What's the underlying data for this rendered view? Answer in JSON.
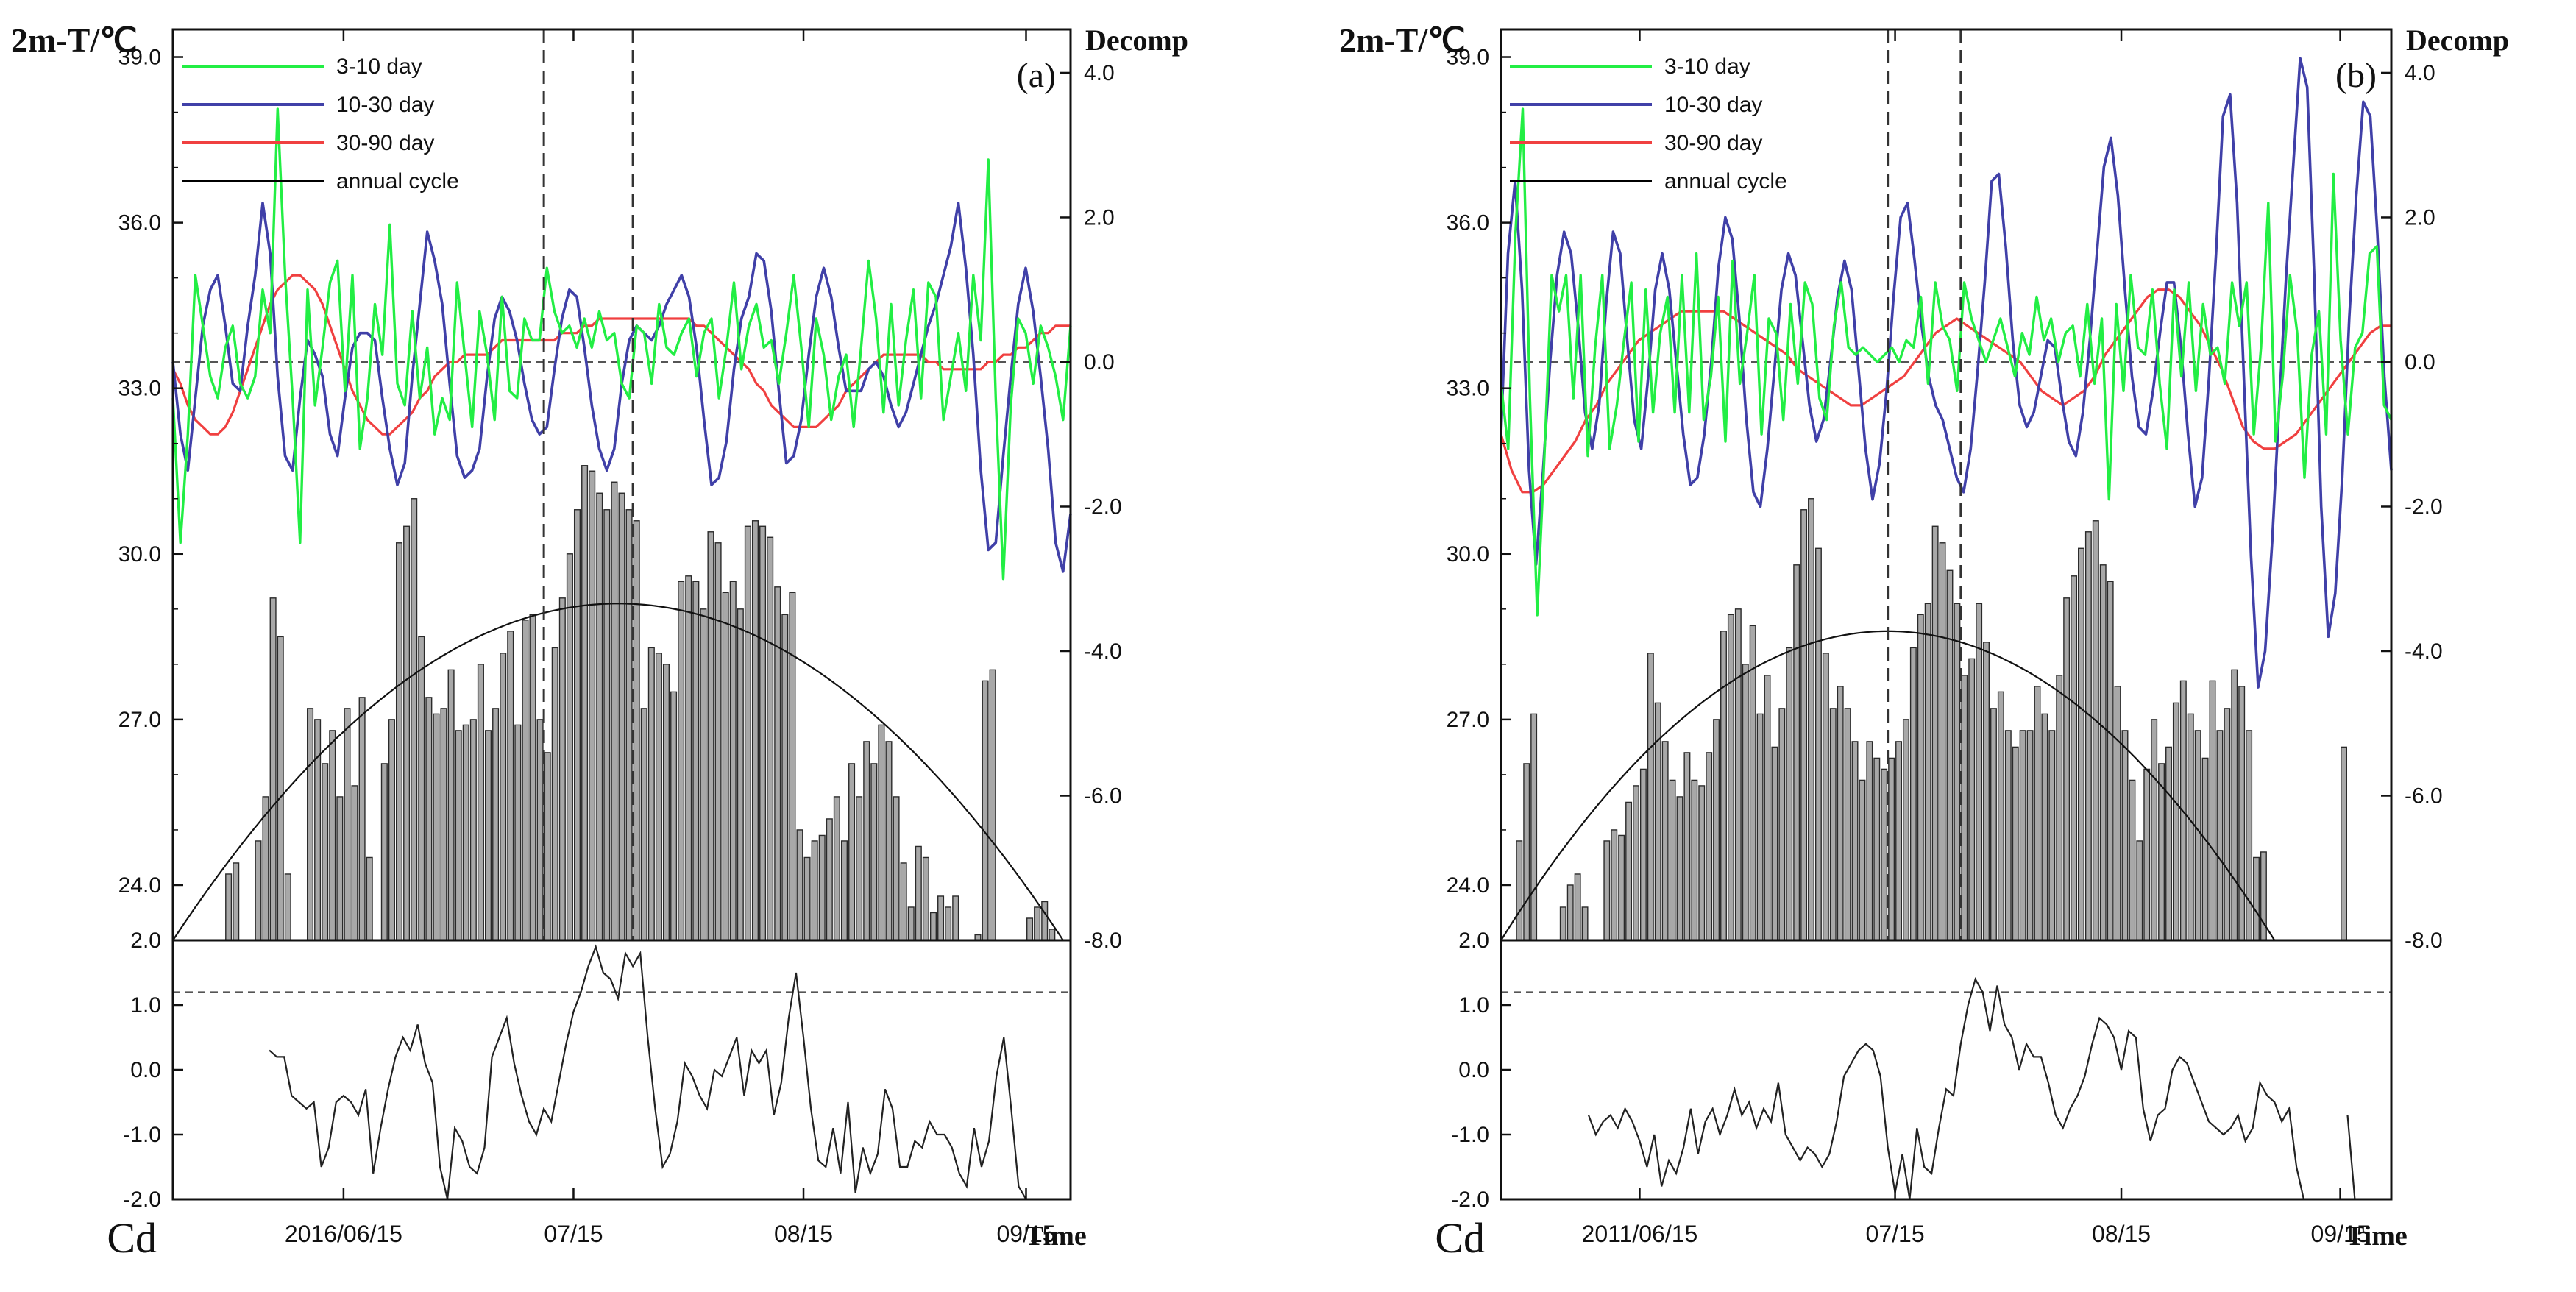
{
  "chart_data": [
    {
      "panel": "(a)",
      "type": "line+bar",
      "left_axis_title": "2m-T/℃",
      "right_axis_title": "Decomp",
      "x_axis_title": "Time",
      "station_label": "Cd",
      "x_ticks": [
        "2016/06/15",
        "07/15",
        "08/15",
        "09/15"
      ],
      "y_left_ticks": [
        "24.0",
        "27.0",
        "30.0",
        "33.0",
        "36.0",
        "39.0"
      ],
      "y_left_range": [
        23.0,
        39.5
      ],
      "y_right_ticks": [
        "-8.0",
        "-6.0",
        "-4.0",
        "-2.0",
        "0.0",
        "2.0",
        "4.0"
      ],
      "y_right_range": [
        -8.0,
        4.6
      ],
      "lower_y_ticks": [
        "-2.0",
        "-1.0",
        "0.0",
        "1.0",
        "2.0"
      ],
      "lower_range": [
        -2.0,
        2.0
      ],
      "lower_threshold": 1.2,
      "vlines_day": [
        50,
        62
      ],
      "legend": [
        {
          "name": "3-10 day",
          "color": "#22ee44"
        },
        {
          "name": "10-30 day",
          "color": "#4040a8"
        },
        {
          "name": "30-90 day",
          "color": "#f04040"
        },
        {
          "name": "annual cycle",
          "color": "#000000"
        }
      ],
      "annual_cycle": {
        "start_day": 0,
        "end_day": 120,
        "peak_day": 60,
        "base": 23.0,
        "peak": 29.1
      },
      "bars": [
        23,
        23,
        23,
        23,
        23,
        23,
        23,
        24.2,
        24.4,
        23,
        23,
        24.8,
        25.6,
        29.2,
        28.5,
        24.2,
        23,
        23,
        27.2,
        27,
        26.2,
        26.8,
        25.6,
        27.2,
        25.8,
        27.4,
        24.5,
        23,
        26.2,
        27,
        30.2,
        30.5,
        31,
        28.5,
        27.4,
        27.1,
        27.2,
        27.9,
        26.8,
        26.9,
        27,
        28,
        26.8,
        27.2,
        28.2,
        28.6,
        26.9,
        28.8,
        28.9,
        27,
        26.4,
        28.3,
        29.2,
        30,
        30.8,
        31.6,
        31.5,
        31.1,
        30.8,
        31.3,
        31.1,
        30.8,
        30.6,
        27.2,
        28.3,
        28.2,
        28,
        27.5,
        29.5,
        29.6,
        29.5,
        29,
        30.4,
        30.2,
        29.3,
        29.5,
        29,
        30.5,
        30.6,
        30.5,
        30.3,
        29.4,
        28.9,
        29.3,
        25,
        24.5,
        24.8,
        24.9,
        25.2,
        25.6,
        24.8,
        26.2,
        25.6,
        26.6,
        26.2,
        26.9,
        26.6,
        25.6,
        24.4,
        23.6,
        24.7,
        24.5,
        23.5,
        23.8,
        23.6,
        23.8,
        23,
        23,
        23.1,
        27.7,
        27.9,
        23,
        23,
        23,
        23,
        23.4,
        23.6,
        23.7,
        23.2,
        23,
        23
      ],
      "series_10_30_day": [
        0,
        -1,
        -1.5,
        -0.5,
        0.5,
        1,
        1.2,
        0.5,
        -0.3,
        -0.4,
        0.5,
        1.2,
        2.2,
        1.5,
        -0.2,
        -1.3,
        -1.5,
        -0.5,
        0.3,
        0.1,
        -0.2,
        -1,
        -1.3,
        -0.5,
        0.2,
        0.4,
        0.4,
        0.3,
        -0.5,
        -1.2,
        -1.7,
        -1.4,
        -0.2,
        0.8,
        1.8,
        1.4,
        0.8,
        -0.3,
        -1.3,
        -1.6,
        -1.5,
        -1.2,
        -0.2,
        0.6,
        0.9,
        0.7,
        0.3,
        -0.3,
        -0.8,
        -1,
        -0.9,
        -0.1,
        0.6,
        1,
        0.9,
        0.2,
        -0.6,
        -1.2,
        -1.5,
        -1.2,
        -0.3,
        0.3,
        0.5,
        0.4,
        0.3,
        0.5,
        0.8,
        1,
        1.2,
        0.9,
        0.2,
        -0.8,
        -1.7,
        -1.6,
        -1.1,
        -0.1,
        0.6,
        0.9,
        1.5,
        1.4,
        0.7,
        -0.4,
        -1.4,
        -1.3,
        -0.8,
        0.1,
        0.9,
        1.3,
        0.9,
        0.2,
        -0.4,
        -0.4,
        -0.4,
        -0.1,
        0,
        -0.2,
        -0.6,
        -0.9,
        -0.7,
        -0.3,
        0.1,
        0.5,
        0.8,
        1.2,
        1.6,
        2.2,
        1.3,
        0.1,
        -1.5,
        -2.6,
        -2.5,
        -1.3,
        -0.2,
        0.8,
        1.3,
        0.7,
        -0.2,
        -1.2,
        -2.5,
        -2.9,
        -2.1
      ],
      "series_30_90_day": [
        -0.1,
        -0.3,
        -0.6,
        -0.8,
        -0.9,
        -1,
        -1,
        -0.9,
        -0.7,
        -0.4,
        -0.1,
        0.2,
        0.5,
        0.8,
        1,
        1.1,
        1.2,
        1.2,
        1.1,
        1,
        0.8,
        0.5,
        0.2,
        -0.1,
        -0.4,
        -0.6,
        -0.8,
        -0.9,
        -1,
        -1,
        -0.9,
        -0.8,
        -0.7,
        -0.5,
        -0.4,
        -0.2,
        -0.1,
        0,
        0,
        0.1,
        0.1,
        0.1,
        0.1,
        0.2,
        0.3,
        0.3,
        0.3,
        0.3,
        0.3,
        0.3,
        0.3,
        0.3,
        0.4,
        0.4,
        0.4,
        0.5,
        0.5,
        0.6,
        0.6,
        0.6,
        0.6,
        0.6,
        0.6,
        0.6,
        0.6,
        0.6,
        0.6,
        0.6,
        0.6,
        0.6,
        0.5,
        0.5,
        0.4,
        0.3,
        0.2,
        0.1,
        0,
        -0.1,
        -0.3,
        -0.4,
        -0.6,
        -0.7,
        -0.8,
        -0.9,
        -0.9,
        -0.9,
        -0.9,
        -0.8,
        -0.7,
        -0.6,
        -0.4,
        -0.3,
        -0.2,
        -0.1,
        0,
        0.1,
        0.1,
        0.1,
        0.1,
        0.1,
        0.1,
        0,
        0,
        -0.1,
        -0.1,
        -0.1,
        -0.1,
        -0.1,
        -0.1,
        0,
        0,
        0.1,
        0.1,
        0.2,
        0.2,
        0.3,
        0.4,
        0.4,
        0.5,
        0.5,
        0.5
      ],
      "series_3_10_day": [
        -0.5,
        -2.5,
        -1,
        1.2,
        0.5,
        -0.2,
        -0.5,
        0.2,
        0.5,
        -0.3,
        -0.5,
        -0.2,
        1,
        0.4,
        3.5,
        1.2,
        -0.5,
        -2.5,
        1,
        -0.6,
        0.2,
        1.1,
        1.4,
        -0.4,
        1.2,
        -1.2,
        -0.5,
        0.8,
        0.1,
        1.9,
        -0.3,
        -0.6,
        0.7,
        -0.5,
        0.2,
        -1,
        -0.5,
        -0.8,
        1.1,
        0.1,
        -0.9,
        0.7,
        0.1,
        -0.8,
        0.9,
        -0.4,
        -0.5,
        0.6,
        0.3,
        0.3,
        1.3,
        0.7,
        0.4,
        0.5,
        0.2,
        0.6,
        0.2,
        0.7,
        0.3,
        0.4,
        -0.3,
        -0.5,
        0.5,
        0.4,
        -0.3,
        0.8,
        0.2,
        0.1,
        0.4,
        0.6,
        -0.2,
        0.4,
        0.6,
        -0.5,
        0.2,
        1.1,
        -0.1,
        0.5,
        0.8,
        0.2,
        0.3,
        -0.3,
        0.4,
        1.2,
        0.2,
        -0.9,
        0.6,
        0.1,
        -0.8,
        -0.2,
        0.1,
        -0.9,
        0.2,
        1.4,
        0.6,
        -0.7,
        0.8,
        -0.6,
        0.3,
        1,
        -0.5,
        1.1,
        0.9,
        -0.8,
        -0.2,
        0.4,
        -0.4,
        1.2,
        0.3,
        2.8,
        -0.5,
        -3,
        -0.6,
        0.6,
        0.4,
        -0.3,
        0.5,
        0.2,
        -0.2,
        -0.8,
        0.5
      ],
      "lower_series": [
        null,
        null,
        null,
        null,
        null,
        null,
        null,
        null,
        null,
        null,
        null,
        null,
        null,
        0.3,
        0.2,
        0.2,
        -0.4,
        -0.5,
        -0.6,
        -0.5,
        -1.5,
        -1.2,
        -0.5,
        -0.4,
        -0.5,
        -0.7,
        -0.3,
        -1.6,
        -0.9,
        -0.3,
        0.2,
        0.5,
        0.3,
        0.7,
        0.1,
        -0.2,
        -1.5,
        -2,
        -0.9,
        -1.1,
        -1.5,
        -1.6,
        -1.2,
        0.2,
        0.5,
        0.8,
        0.1,
        -0.4,
        -0.8,
        -1,
        -0.6,
        -0.8,
        -0.2,
        0.4,
        0.9,
        1.2,
        1.6,
        1.9,
        1.5,
        1.4,
        1.1,
        1.8,
        1.6,
        1.8,
        0.5,
        -0.6,
        -1.5,
        -1.3,
        -0.8,
        0.1,
        -0.1,
        -0.4,
        -0.6,
        0,
        -0.1,
        0.2,
        0.5,
        -0.4,
        0.3,
        0.1,
        0.3,
        -0.7,
        -0.2,
        0.8,
        1.5,
        0.5,
        -0.6,
        -1.4,
        -1.5,
        -0.9,
        -1.6,
        -0.5,
        -1.9,
        -1.2,
        -1.6,
        -1.3,
        -0.3,
        -0.6,
        -1.5,
        -1.5,
        -1.1,
        -1.2,
        -0.8,
        -1,
        -1,
        -1.2,
        -1.6,
        -1.8,
        -0.9,
        -1.5,
        -1.1,
        -0.1,
        0.5,
        -0.6,
        -1.8,
        -2,
        null,
        null,
        null,
        null,
        null
      ]
    },
    {
      "panel": "(b)",
      "type": "line+bar",
      "left_axis_title": "2m-T/℃",
      "right_axis_title": "Decomp",
      "x_axis_title": "Time",
      "station_label": "Cd",
      "x_ticks": [
        "2011/06/15",
        "07/15",
        "08/15",
        "09/15"
      ],
      "y_left_ticks": [
        "24.0",
        "27.0",
        "30.0",
        "33.0",
        "36.0",
        "39.0"
      ],
      "y_left_range": [
        23.0,
        39.5
      ],
      "y_right_ticks": [
        "-8.0",
        "-6.0",
        "-4.0",
        "-2.0",
        "0.0",
        "2.0",
        "4.0"
      ],
      "y_right_range": [
        -8.0,
        4.6
      ],
      "lower_y_ticks": [
        "-2.0",
        "-1.0",
        "0.0",
        "1.0",
        "2.0"
      ],
      "lower_range": [
        -2.0,
        2.0
      ],
      "lower_threshold": 1.2,
      "vlines_day": [
        53,
        63
      ],
      "legend": [
        {
          "name": "3-10 day",
          "color": "#22ee44"
        },
        {
          "name": "10-30 day",
          "color": "#4040a8"
        },
        {
          "name": "30-90 day",
          "color": "#f04040"
        },
        {
          "name": "annual cycle",
          "color": "#000000"
        }
      ],
      "annual_cycle": {
        "start_day": 0,
        "end_day": 106,
        "peak_day": 53,
        "base": 23.0,
        "peak": 28.6
      },
      "bars": [
        23,
        23,
        24.8,
        26.2,
        27.1,
        23,
        23,
        23,
        23.6,
        24,
        24.2,
        23.6,
        23,
        23,
        24.8,
        25,
        24.9,
        25.5,
        25.8,
        26.1,
        28.2,
        27.3,
        26.6,
        25.9,
        25.6,
        26.4,
        25.9,
        25.8,
        26.4,
        27,
        28.6,
        28.9,
        29,
        28,
        28.7,
        27.1,
        27.8,
        26.5,
        27.2,
        28.3,
        29.8,
        30.8,
        31,
        30.1,
        28.2,
        27.2,
        27.6,
        27.2,
        26.6,
        25.9,
        26.6,
        26.3,
        26.1,
        26.3,
        26.6,
        27,
        28.3,
        28.9,
        29.1,
        30.5,
        30.2,
        29.7,
        29.1,
        27.8,
        28.1,
        29.1,
        28.4,
        27.2,
        27.5,
        26.8,
        26.5,
        26.8,
        26.8,
        27.6,
        27.1,
        26.8,
        27.8,
        29.2,
        29.6,
        30.1,
        30.4,
        30.6,
        29.8,
        29.5,
        27.6,
        26.8,
        25.9,
        24.8,
        26.1,
        27,
        26.2,
        26.5,
        27.3,
        27.7,
        27.1,
        26.8,
        26.3,
        27.7,
        26.8,
        27.2,
        27.9,
        27.6,
        26.8,
        24.5,
        24.6,
        23,
        23,
        23,
        23,
        23,
        23,
        23,
        23,
        23,
        23,
        26.5,
        23,
        23,
        23,
        23,
        23
      ],
      "series_10_30_day": [
        -1,
        1.5,
        2.5,
        1,
        -1.5,
        -2.8,
        -1.5,
        0,
        1.2,
        1.8,
        1.5,
        0.5,
        -0.7,
        -1.2,
        -0.6,
        0.8,
        1.8,
        1.5,
        0.3,
        -0.8,
        -1.2,
        -0.2,
        1,
        1.5,
        1,
        0,
        -1,
        -1.7,
        -1.6,
        -1,
        0,
        1.3,
        2,
        1.7,
        0.6,
        -0.8,
        -1.8,
        -2,
        -1.2,
        -0.1,
        1,
        1.5,
        1.2,
        0.3,
        -0.6,
        -1.1,
        -0.8,
        0,
        0.9,
        1.4,
        1,
        -0.1,
        -1.2,
        -1.9,
        -1.4,
        -0.4,
        0.9,
        2,
        2.2,
        1.4,
        0.5,
        -0.2,
        -0.6,
        -0.8,
        -1.2,
        -1.6,
        -1.8,
        -1.2,
        -0.1,
        1.1,
        2.5,
        2.6,
        1.6,
        0.3,
        -0.6,
        -0.9,
        -0.7,
        -0.2,
        0.3,
        0.2,
        -0.5,
        -1.1,
        -1.3,
        -0.7,
        0.3,
        1.5,
        2.7,
        3.1,
        2.3,
        1,
        -0.2,
        -0.9,
        -1,
        -0.4,
        0.4,
        1.1,
        1.1,
        0.2,
        -1,
        -2,
        -1.6,
        -0.2,
        1.5,
        3.4,
        3.7,
        2.2,
        -0.3,
        -2.7,
        -4.5,
        -4,
        -2.5,
        -0.6,
        1.2,
        2.7,
        4.2,
        3.8,
        1.2,
        -2,
        -3.8,
        -3.2,
        -1.6,
        0.6,
        2.3,
        3.6,
        3.4,
        1.8,
        -0.2,
        -1.5
      ],
      "series_30_90_day": [
        -1,
        -1.5,
        -1.8,
        -1.8,
        -1.7,
        -1.5,
        -1.3,
        -1.1,
        -0.8,
        -0.6,
        -0.3,
        -0.1,
        0.1,
        0.3,
        0.4,
        0.5,
        0.6,
        0.7,
        0.7,
        0.7,
        0.7,
        0.7,
        0.6,
        0.5,
        0.4,
        0.3,
        0.2,
        0.1,
        -0.1,
        -0.2,
        -0.3,
        -0.4,
        -0.5,
        -0.6,
        -0.6,
        -0.5,
        -0.4,
        -0.3,
        -0.2,
        0,
        0.2,
        0.4,
        0.5,
        0.6,
        0.5,
        0.4,
        0.3,
        0.2,
        0.1,
        0,
        -0.2,
        -0.4,
        -0.5,
        -0.6,
        -0.5,
        -0.4,
        -0.2,
        0.1,
        0.3,
        0.5,
        0.7,
        0.9,
        1,
        1,
        0.9,
        0.7,
        0.5,
        0.2,
        -0.1,
        -0.5,
        -0.9,
        -1.1,
        -1.2,
        -1.2,
        -1.1,
        -1,
        -0.8,
        -0.6,
        -0.4,
        -0.2,
        0,
        0.2,
        0.4,
        0.5,
        0.5
      ],
      "series_3_10_day": [
        -0.3,
        -1.2,
        1.8,
        3.5,
        -0.5,
        -3.5,
        -1.3,
        1.2,
        0.7,
        1.2,
        -0.5,
        1.2,
        -1.3,
        0.2,
        1.2,
        -1.2,
        -0.6,
        0.3,
        1.1,
        -1.1,
        1,
        -0.7,
        0.4,
        0.9,
        -0.7,
        1.2,
        -0.7,
        1.5,
        -0.8,
        -0.2,
        0.9,
        -1.1,
        1.4,
        -0.3,
        0.4,
        1.2,
        -1,
        0.6,
        0.4,
        -0.8,
        0.8,
        -0.3,
        1.1,
        0.8,
        -0.5,
        -0.8,
        0.5,
        1.1,
        0.2,
        0.1,
        0.2,
        0.1,
        0,
        0.1,
        0.2,
        0,
        0.3,
        0.2,
        0.9,
        -0.3,
        1.1,
        0.5,
        0.3,
        -0.4,
        1.1,
        0.6,
        0.3,
        0,
        0.3,
        0.6,
        0.2,
        -0.2,
        0.4,
        0.1,
        0.9,
        0.3,
        0.6,
        0,
        0.4,
        0.5,
        -0.2,
        0.8,
        -0.3,
        0.6,
        -1.9,
        0.8,
        -0.4,
        1.2,
        0.2,
        0.1,
        1,
        -0.3,
        -1.2,
        1,
        -0.2,
        1.1,
        -0.4,
        0.8,
        0.1,
        0.2,
        -0.3,
        1.1,
        0.5,
        1.1,
        -1,
        0.2,
        2.2,
        -1.1,
        -0.2,
        1.2,
        0.4,
        -1.6,
        0.1,
        0.7,
        -1,
        2.6,
        0.3,
        -1,
        0.2,
        0.4,
        1.5,
        1.6,
        -0.6,
        -0.8
      ],
      "lower_series": [
        null,
        null,
        null,
        null,
        null,
        null,
        null,
        null,
        null,
        null,
        null,
        null,
        -0.7,
        -1,
        -0.8,
        -0.7,
        -0.9,
        -0.6,
        -0.8,
        -1.1,
        -1.5,
        -1,
        -1.8,
        -1.4,
        -1.6,
        -1.2,
        -0.6,
        -1.3,
        -0.8,
        -0.6,
        -1,
        -0.7,
        -0.3,
        -0.7,
        -0.5,
        -0.9,
        -0.6,
        -0.8,
        -0.2,
        -1,
        -1.2,
        -1.4,
        -1.2,
        -1.3,
        -1.5,
        -1.3,
        -0.8,
        -0.1,
        0.1,
        0.3,
        0.4,
        0.3,
        -0.1,
        -1.2,
        -1.9,
        -1.3,
        -2,
        -0.9,
        -1.5,
        -1.6,
        -0.9,
        -0.3,
        -0.4,
        0.4,
        1,
        1.4,
        1.2,
        0.6,
        1.3,
        0.7,
        0.5,
        0,
        0.4,
        0.2,
        0.2,
        -0.2,
        -0.7,
        -0.9,
        -0.6,
        -0.4,
        -0.1,
        0.4,
        0.8,
        0.7,
        0.5,
        0,
        0.6,
        0.5,
        -0.6,
        -1.1,
        -0.7,
        -0.6,
        0,
        0.2,
        0.1,
        -0.2,
        -0.5,
        -0.8,
        -0.9,
        -1,
        -0.9,
        -0.7,
        -1.1,
        -0.9,
        -0.2,
        -0.4,
        -0.5,
        -0.8,
        -0.6,
        -1.5,
        -2,
        -2,
        null,
        null,
        null,
        null,
        -0.7,
        -2,
        null,
        null
      ]
    }
  ]
}
